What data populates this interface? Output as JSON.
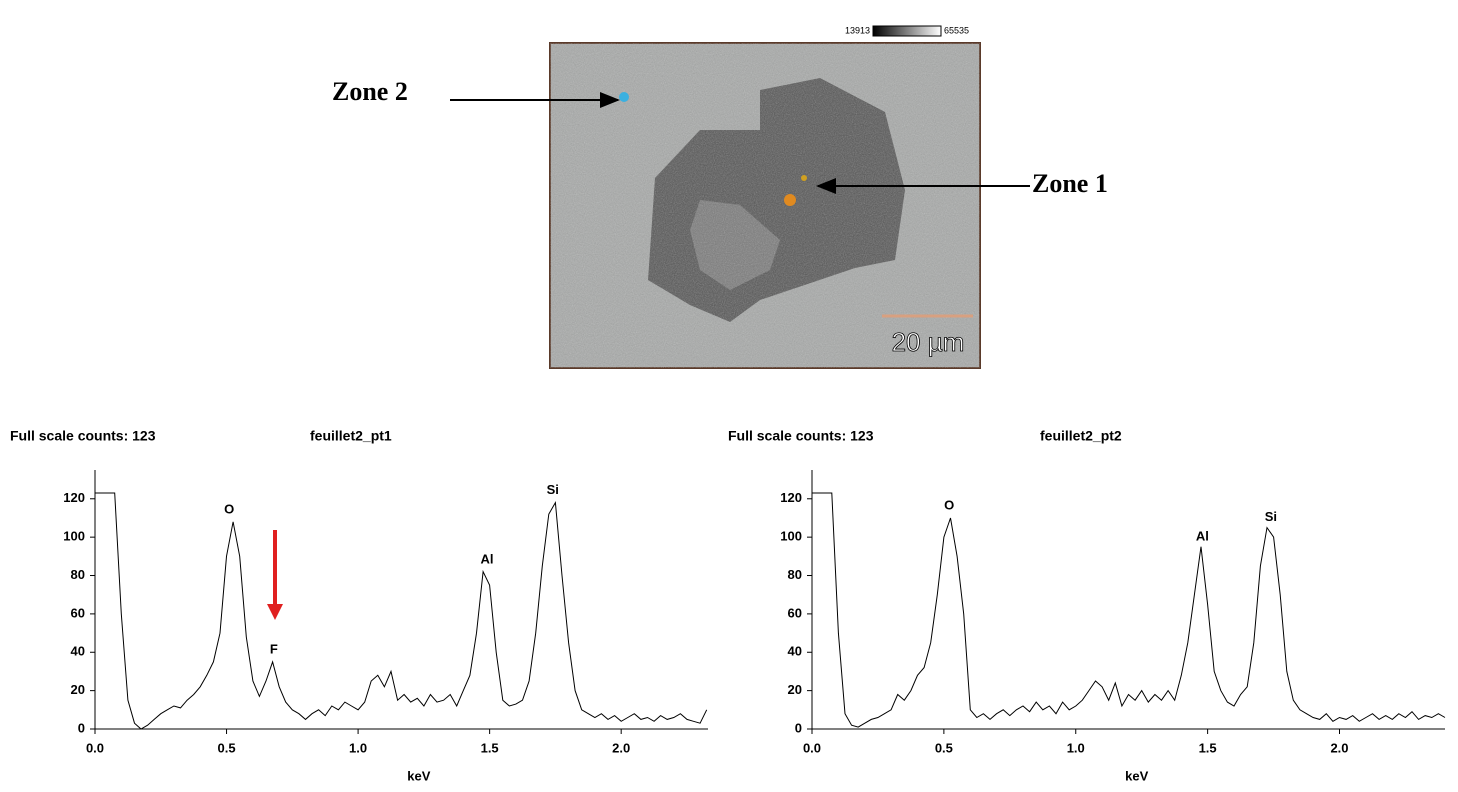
{
  "figure_image": {
    "scale_min": "13913",
    "scale_max": "65535",
    "scale_bar": "20 µm",
    "zones": [
      "Zone 1",
      "Zone 2"
    ]
  },
  "chart_data": [
    {
      "type": "line",
      "header": "Full scale counts: 123",
      "title": "feuillet2_pt1",
      "xlabel": "keV",
      "color": "#000000",
      "xlim": [
        0,
        2.33
      ],
      "ylim": [
        0,
        135
      ],
      "xticks": [
        {
          "value": 0,
          "label": "0.0"
        },
        {
          "value": 0.5,
          "label": "0.5"
        },
        {
          "value": 1,
          "label": "1.0"
        },
        {
          "value": 1.5,
          "label": "1.5"
        },
        {
          "value": 2,
          "label": "2.0"
        }
      ],
      "yticks": [
        0,
        20,
        40,
        60,
        80,
        100,
        120
      ],
      "annotations": [
        {
          "text": "O",
          "x": 0.51,
          "y": 110
        },
        {
          "text": "F",
          "x": 0.68,
          "y": 37
        },
        {
          "text": "Al",
          "x": 1.49,
          "y": 84
        },
        {
          "text": "Si",
          "x": 1.74,
          "y": 120
        }
      ],
      "x": [
        0,
        0.025,
        0.05,
        0.075,
        0.1,
        0.125,
        0.15,
        0.175,
        0.2,
        0.225,
        0.25,
        0.275,
        0.3,
        0.325,
        0.35,
        0.375,
        0.4,
        0.425,
        0.45,
        0.475,
        0.5,
        0.525,
        0.55,
        0.575,
        0.6,
        0.625,
        0.65,
        0.675,
        0.7,
        0.725,
        0.75,
        0.775,
        0.8,
        0.825,
        0.85,
        0.875,
        0.9,
        0.925,
        0.95,
        0.975,
        1,
        1.025,
        1.05,
        1.075,
        1.1,
        1.125,
        1.15,
        1.175,
        1.2,
        1.225,
        1.25,
        1.275,
        1.3,
        1.325,
        1.35,
        1.375,
        1.4,
        1.425,
        1.45,
        1.475,
        1.5,
        1.525,
        1.55,
        1.575,
        1.6,
        1.625,
        1.65,
        1.675,
        1.7,
        1.725,
        1.75,
        1.775,
        1.8,
        1.825,
        1.85,
        1.875,
        1.9,
        1.925,
        1.95,
        1.975,
        2,
        2.025,
        2.05,
        2.075,
        2.1,
        2.125,
        2.15,
        2.175,
        2.2,
        2.225,
        2.25,
        2.275,
        2.3,
        2.325
      ],
      "values": [
        123,
        123,
        123,
        123,
        60,
        15,
        3,
        0,
        2,
        5,
        8,
        10,
        12,
        11,
        15,
        18,
        22,
        28,
        35,
        50,
        90,
        108,
        90,
        48,
        25,
        17,
        25,
        35,
        22,
        14,
        10,
        8,
        5,
        8,
        10,
        7,
        12,
        10,
        14,
        12,
        10,
        14,
        25,
        28,
        22,
        30,
        15,
        18,
        14,
        16,
        12,
        18,
        14,
        15,
        18,
        12,
        20,
        28,
        50,
        82,
        75,
        40,
        15,
        12,
        13,
        15,
        25,
        50,
        85,
        112,
        118,
        80,
        45,
        20,
        10,
        8,
        6,
        8,
        5,
        7,
        4,
        6,
        8,
        5,
        6,
        4,
        7,
        5,
        6,
        8,
        5,
        4,
        3,
        10
      ]
    },
    {
      "type": "line",
      "header": "Full scale counts: 123",
      "title": "feuillet2_pt2",
      "xlabel": "keV",
      "color": "#000000",
      "xlim": [
        0,
        2.4
      ],
      "ylim": [
        0,
        135
      ],
      "xticks": [
        {
          "value": 0,
          "label": "0.0"
        },
        {
          "value": 0.5,
          "label": "0.5"
        },
        {
          "value": 1,
          "label": "1.0"
        },
        {
          "value": 1.5,
          "label": "1.5"
        },
        {
          "value": 2,
          "label": "2.0"
        }
      ],
      "yticks": [
        0,
        20,
        40,
        60,
        80,
        100,
        120
      ],
      "annotations": [
        {
          "text": "O",
          "x": 0.52,
          "y": 112
        },
        {
          "text": "Al",
          "x": 1.48,
          "y": 96
        },
        {
          "text": "Si",
          "x": 1.74,
          "y": 106
        }
      ],
      "x": [
        0,
        0.025,
        0.05,
        0.075,
        0.1,
        0.125,
        0.15,
        0.175,
        0.2,
        0.225,
        0.25,
        0.275,
        0.3,
        0.325,
        0.35,
        0.375,
        0.4,
        0.425,
        0.45,
        0.475,
        0.5,
        0.525,
        0.55,
        0.575,
        0.6,
        0.625,
        0.65,
        0.675,
        0.7,
        0.725,
        0.75,
        0.775,
        0.8,
        0.825,
        0.85,
        0.875,
        0.9,
        0.925,
        0.95,
        0.975,
        1,
        1.025,
        1.05,
        1.075,
        1.1,
        1.125,
        1.15,
        1.175,
        1.2,
        1.225,
        1.25,
        1.275,
        1.3,
        1.325,
        1.35,
        1.375,
        1.4,
        1.425,
        1.45,
        1.475,
        1.5,
        1.525,
        1.55,
        1.575,
        1.6,
        1.625,
        1.65,
        1.675,
        1.7,
        1.725,
        1.75,
        1.775,
        1.8,
        1.825,
        1.85,
        1.875,
        1.9,
        1.925,
        1.95,
        1.975,
        2,
        2.025,
        2.05,
        2.075,
        2.1,
        2.125,
        2.15,
        2.175,
        2.2,
        2.225,
        2.25,
        2.275,
        2.3,
        2.325,
        2.35,
        2.375,
        2.4
      ],
      "values": [
        123,
        123,
        123,
        123,
        50,
        8,
        2,
        1,
        3,
        5,
        6,
        8,
        10,
        18,
        15,
        20,
        28,
        32,
        45,
        70,
        100,
        110,
        90,
        60,
        10,
        6,
        8,
        5,
        8,
        10,
        7,
        10,
        12,
        9,
        14,
        10,
        12,
        8,
        14,
        10,
        12,
        15,
        20,
        25,
        22,
        15,
        24,
        12,
        18,
        15,
        20,
        14,
        18,
        15,
        20,
        15,
        28,
        45,
        70,
        95,
        65,
        30,
        20,
        14,
        12,
        18,
        22,
        45,
        85,
        105,
        100,
        70,
        30,
        15,
        10,
        8,
        6,
        5,
        8,
        4,
        6,
        5,
        7,
        4,
        6,
        8,
        5,
        7,
        5,
        8,
        6,
        9,
        5,
        7,
        6,
        8,
        6
      ]
    }
  ]
}
